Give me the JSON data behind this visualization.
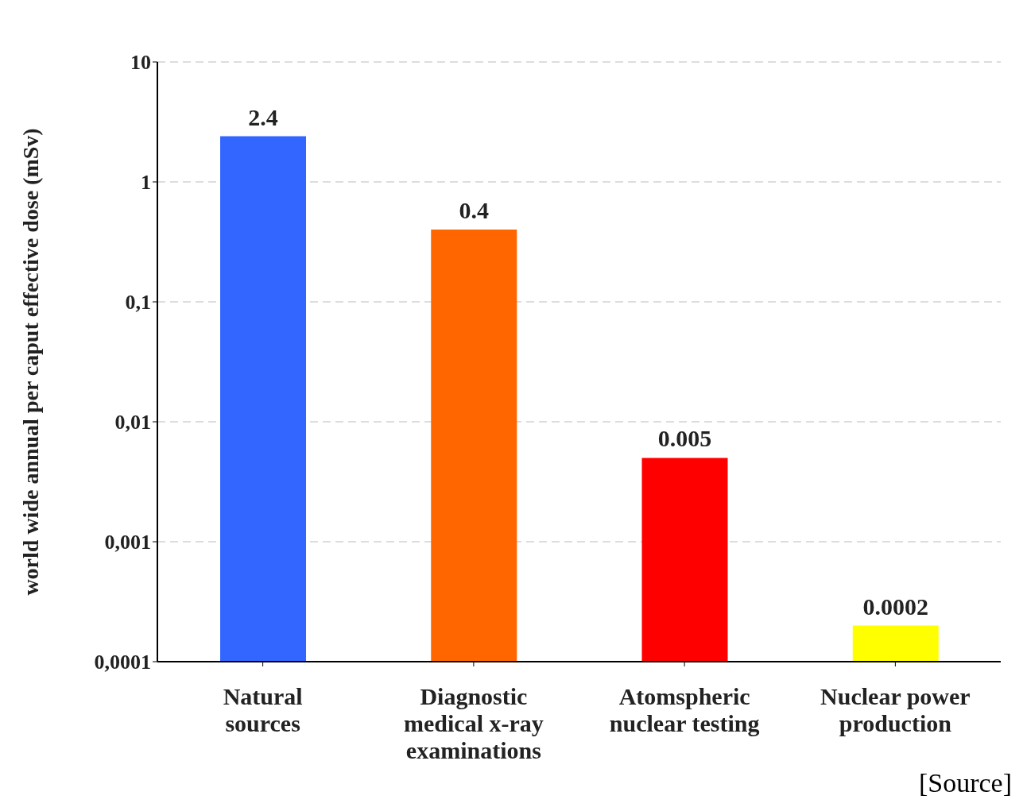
{
  "chart_data": {
    "type": "bar",
    "ylabel": "world wide annual per caput effective dose (mSv)",
    "categories": [
      "Natural\nsources",
      "Diagnostic\nmedical x-ray\nexaminations",
      "Atomspheric\nnuclear testing",
      "Nuclear power\nproduction"
    ],
    "values": [
      2.4,
      0.4,
      0.005,
      0.0002
    ],
    "colors": [
      "#3366ff",
      "#ff6600",
      "#ff0000",
      "#ffff00"
    ],
    "log": true,
    "ylim": [
      0.0001,
      10
    ],
    "yticks": [
      10,
      1,
      {
        "value": 0.1,
        "label": "0,1"
      },
      {
        "value": 0.01,
        "label": "0,01"
      },
      {
        "value": 0.001,
        "label": "0,001"
      },
      {
        "value": 0.0001,
        "label": "0,0001"
      }
    ],
    "grid": "y",
    "data_labels": true,
    "annotations": [
      "[Source]"
    ]
  }
}
